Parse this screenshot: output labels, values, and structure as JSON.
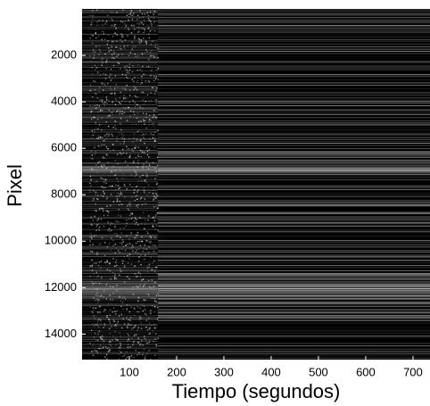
{
  "chart_data": {
    "type": "image",
    "xlabel": "Tiempo (segundos)",
    "ylabel": "Pixel",
    "xlim": [
      0,
      736
    ],
    "xticks": [
      100,
      200,
      300,
      400,
      500,
      600,
      700
    ],
    "ylim": [
      15100,
      0
    ],
    "yticks": [
      2000,
      4000,
      6000,
      8000,
      10000,
      12000,
      14000
    ],
    "colormap": "gray"
  }
}
